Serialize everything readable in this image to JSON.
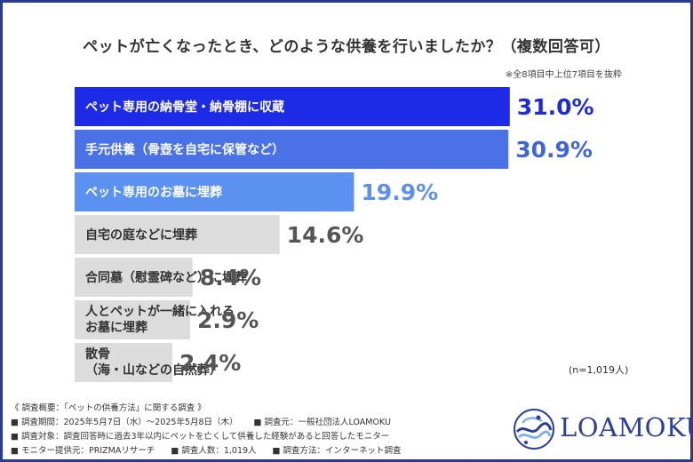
{
  "title": "ペットが亡くなったとき、どのような供養を行いましたか？（複数回答可）",
  "note": "※全8項目中上位7項目を抜粋",
  "chart_data": {
    "type": "bar",
    "orientation": "horizontal",
    "unit": "%",
    "xlim": [
      0,
      40
    ],
    "grid": false,
    "categories": [
      "ペット専用の納骨堂・納骨棚に収蔵",
      "手元供養（骨壺を自宅に保管など）",
      "ペット専用のお墓に埋葬",
      "自宅の庭などに埋葬",
      "合同墓（慰霊碑など）に埋葬",
      "人とペットが一緒に入れるお墓に埋葬",
      "散骨（海・山などの自然葬）"
    ],
    "category_lines": [
      [
        "ペット専用の納骨堂・納骨棚に収蔵"
      ],
      [
        "手元供養（骨壺を自宅に保管など）"
      ],
      [
        "ペット専用のお墓に埋葬"
      ],
      [
        "自宅の庭などに埋葬"
      ],
      [
        "合同墓（慰霊碑など）に埋葬"
      ],
      [
        "人とペットが一緒に入れる",
        "お墓に埋葬"
      ],
      [
        "散骨",
        "（海・山などの自然葬）"
      ]
    ],
    "values": [
      31.0,
      30.9,
      19.9,
      14.6,
      8.4,
      2.9,
      2.4
    ],
    "value_labels": [
      "31.0%",
      "30.9%",
      "19.9%",
      "14.6%",
      "8.4%",
      "2.9%",
      "2.4%"
    ],
    "bar_colors": [
      "#1e2be6",
      "#4a72e6",
      "#5b91f0",
      "#dcdcdc",
      "#dcdcdc",
      "#dcdcdc",
      "#dcdcdc"
    ],
    "value_colors": [
      "#1e2bd6",
      "#3f66d8",
      "#5b8ff0",
      "#555555",
      "#555555",
      "#555555",
      "#555555"
    ],
    "label_dark": [
      false,
      false,
      false,
      true,
      true,
      true,
      true
    ]
  },
  "sample_size": "(n=1,019人)",
  "survey": {
    "heading": "《 調査概要：「ペットの供養方法」に関する調査 》",
    "period": "■ 調査期間：2025年5月7日（水）～2025年5月8日（木）",
    "organizer": "■ 調査元：一般社団法人LOAMOKU",
    "target": "■ 調査対象：調査回答時に過去3年以内にペットを亡くして供養した経験があると回答したモニター",
    "provider": "■ モニター提供元：PRIZMAリサーチ",
    "respondents": "■ 調査人数：1,019人",
    "method": "■ 調査方法：インターネット調査"
  },
  "logo": {
    "name": "LOAMOKU",
    "colors": {
      "main": "#2c3f95",
      "light": "#7fb3e6"
    }
  }
}
